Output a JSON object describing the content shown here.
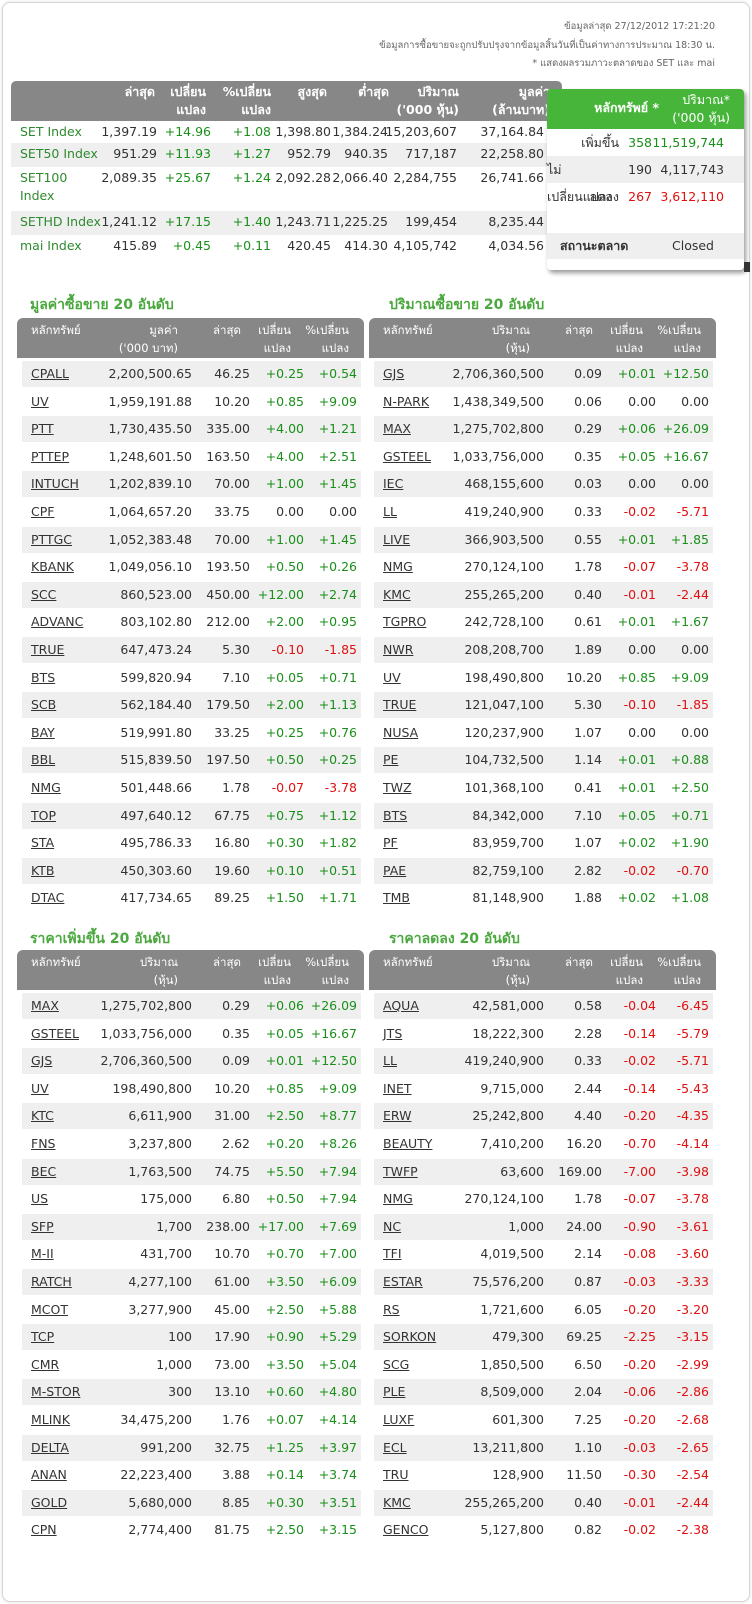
{
  "header": {
    "last_update": "ข้อมูลล่าสุด 27/12/2012 17:21:20",
    "note1": "ข้อมูลการซื้อขายจะถูกปรับปรุงจากข้อมูลสิ้นวันที่เป็นค่าทางการประมาณ 18:30 น.",
    "note2": "* แสดงผลรวมภาวะตลาดของ SET และ mai"
  },
  "index_table": {
    "headers": [
      "ล่าสุด",
      "เปลี่ยน\nแปลง",
      "%เปลี่ยน\nแปลง",
      "สูงสุด",
      "ต่ำสุด",
      "ปริมาณ\n('000 หุ้น)",
      "มูลค่า\n(ล้านบาท)"
    ],
    "rows": [
      {
        "name": "SET Index",
        "last": "1,397.19",
        "chg": "+14.96",
        "pct": "+1.08",
        "high": "1,398.80",
        "low": "1,384.24",
        "vol": "15,203,607",
        "val": "37,164.84"
      },
      {
        "name": "SET50 Index",
        "last": "951.29",
        "chg": "+11.93",
        "pct": "+1.27",
        "high": "952.79",
        "low": "940.35",
        "vol": "717,187",
        "val": "22,258.80"
      },
      {
        "name": "SET100\nIndex",
        "last": "2,089.35",
        "chg": "+25.67",
        "pct": "+1.24",
        "high": "2,092.28",
        "low": "2,066.40",
        "vol": "2,284,755",
        "val": "26,741.66"
      },
      {
        "name": "SETHD Index",
        "last": "1,241.12",
        "chg": "+17.15",
        "pct": "+1.40",
        "high": "1,243.71",
        "low": "1,225.25",
        "vol": "199,454",
        "val": "8,235.44"
      },
      {
        "name": "mai Index",
        "last": "415.89",
        "chg": "+0.45",
        "pct": "+0.11",
        "high": "420.45",
        "low": "414.30",
        "vol": "4,105,742",
        "val": "4,034.56"
      }
    ]
  },
  "advance_decline": {
    "headers": [
      "หลักทรัพย์ *",
      "ปริมาณ*\n('000 หุ้น)"
    ],
    "rows": [
      {
        "label": "เพิ่มขึ้น",
        "count": "358",
        "volume": "11,519,744"
      },
      {
        "label": "ไม่เปลี่ยนแปลง",
        "count": "190",
        "volume": "4,117,743"
      },
      {
        "label": "ลดลง",
        "count": "267",
        "volume": "3,612,110"
      }
    ],
    "status_label": "สถานะตลาด",
    "status_value": "Closed"
  },
  "top_value": {
    "title": "มูลค่าซื้อขาย 20 อันดับ",
    "headers": [
      "หลักทรัพย์",
      "มูลค่า\n('000 บาท)",
      "ล่าสุด",
      "เปลี่ยน\nแปลง",
      "%เปลี่ยน\nแปลง"
    ],
    "rows": [
      [
        "CPALL",
        "2,200,500.65",
        "46.25",
        "+0.25",
        "+0.54"
      ],
      [
        "UV",
        "1,959,191.88",
        "10.20",
        "+0.85",
        "+9.09"
      ],
      [
        "PTT",
        "1,730,435.50",
        "335.00",
        "+4.00",
        "+1.21"
      ],
      [
        "PTTEP",
        "1,248,601.50",
        "163.50",
        "+4.00",
        "+2.51"
      ],
      [
        "INTUCH",
        "1,202,839.10",
        "70.00",
        "+1.00",
        "+1.45"
      ],
      [
        "CPF",
        "1,064,657.20",
        "33.75",
        "0.00",
        "0.00"
      ],
      [
        "PTTGC",
        "1,052,383.48",
        "70.00",
        "+1.00",
        "+1.45"
      ],
      [
        "KBANK",
        "1,049,056.10",
        "193.50",
        "+0.50",
        "+0.26"
      ],
      [
        "SCC",
        "860,523.00",
        "450.00",
        "+12.00",
        "+2.74"
      ],
      [
        "ADVANC",
        "803,102.80",
        "212.00",
        "+2.00",
        "+0.95"
      ],
      [
        "TRUE",
        "647,473.24",
        "5.30",
        "-0.10",
        "-1.85"
      ],
      [
        "BTS",
        "599,820.94",
        "7.10",
        "+0.05",
        "+0.71"
      ],
      [
        "SCB",
        "562,184.40",
        "179.50",
        "+2.00",
        "+1.13"
      ],
      [
        "BAY",
        "519,991.80",
        "33.25",
        "+0.25",
        "+0.76"
      ],
      [
        "BBL",
        "515,839.50",
        "197.50",
        "+0.50",
        "+0.25"
      ],
      [
        "NMG",
        "501,448.66",
        "1.78",
        "-0.07",
        "-3.78"
      ],
      [
        "TOP",
        "497,640.12",
        "67.75",
        "+0.75",
        "+1.12"
      ],
      [
        "STA",
        "495,786.33",
        "16.80",
        "+0.30",
        "+1.82"
      ],
      [
        "KTB",
        "450,303.60",
        "19.60",
        "+0.10",
        "+0.51"
      ],
      [
        "DTAC",
        "417,734.65",
        "89.25",
        "+1.50",
        "+1.71"
      ]
    ]
  },
  "top_volume": {
    "title": "ปริมาณซื้อขาย 20 อันดับ",
    "headers": [
      "หลักทรัพย์",
      "ปริมาณ\n(หุ้น)",
      "ล่าสุด",
      "เปลี่ยน\nแปลง",
      "%เปลี่ยน\nแปลง"
    ],
    "rows": [
      [
        "GJS",
        "2,706,360,500",
        "0.09",
        "+0.01",
        "+12.50"
      ],
      [
        "N-PARK",
        "1,438,349,500",
        "0.06",
        "0.00",
        "0.00"
      ],
      [
        "MAX",
        "1,275,702,800",
        "0.29",
        "+0.06",
        "+26.09"
      ],
      [
        "GSTEEL",
        "1,033,756,000",
        "0.35",
        "+0.05",
        "+16.67"
      ],
      [
        "IEC",
        "468,155,600",
        "0.03",
        "0.00",
        "0.00"
      ],
      [
        "LL",
        "419,240,900",
        "0.33",
        "-0.02",
        "-5.71"
      ],
      [
        "LIVE",
        "366,903,500",
        "0.55",
        "+0.01",
        "+1.85"
      ],
      [
        "NMG",
        "270,124,100",
        "1.78",
        "-0.07",
        "-3.78"
      ],
      [
        "KMC",
        "255,265,200",
        "0.40",
        "-0.01",
        "-2.44"
      ],
      [
        "TGPRO",
        "242,728,100",
        "0.61",
        "+0.01",
        "+1.67"
      ],
      [
        "NWR",
        "208,208,700",
        "1.89",
        "0.00",
        "0.00"
      ],
      [
        "UV",
        "198,490,800",
        "10.20",
        "+0.85",
        "+9.09"
      ],
      [
        "TRUE",
        "121,047,100",
        "5.30",
        "-0.10",
        "-1.85"
      ],
      [
        "NUSA",
        "120,237,900",
        "1.07",
        "0.00",
        "0.00"
      ],
      [
        "PE",
        "104,732,500",
        "1.14",
        "+0.01",
        "+0.88"
      ],
      [
        "TWZ",
        "101,368,100",
        "0.41",
        "+0.01",
        "+2.50"
      ],
      [
        "BTS",
        "84,342,000",
        "7.10",
        "+0.05",
        "+0.71"
      ],
      [
        "PF",
        "83,959,700",
        "1.07",
        "+0.02",
        "+1.90"
      ],
      [
        "PAE",
        "82,759,100",
        "2.82",
        "-0.02",
        "-0.70"
      ],
      [
        "TMB",
        "81,148,900",
        "1.88",
        "+0.02",
        "+1.08"
      ]
    ]
  },
  "top_gainers": {
    "title": "ราคาเพิ่มขึ้น 20 อันดับ",
    "headers": [
      "หลักทรัพย์",
      "ปริมาณ\n(หุ้น)",
      "ล่าสุด",
      "เปลี่ยน\nแปลง",
      "%เปลี่ยน\nแปลง"
    ],
    "rows": [
      [
        "MAX",
        "1,275,702,800",
        "0.29",
        "+0.06",
        "+26.09"
      ],
      [
        "GSTEEL",
        "1,033,756,000",
        "0.35",
        "+0.05",
        "+16.67"
      ],
      [
        "GJS",
        "2,706,360,500",
        "0.09",
        "+0.01",
        "+12.50"
      ],
      [
        "UV",
        "198,490,800",
        "10.20",
        "+0.85",
        "+9.09"
      ],
      [
        "KTC",
        "6,611,900",
        "31.00",
        "+2.50",
        "+8.77"
      ],
      [
        "FNS",
        "3,237,800",
        "2.62",
        "+0.20",
        "+8.26"
      ],
      [
        "BEC",
        "1,763,500",
        "74.75",
        "+5.50",
        "+7.94"
      ],
      [
        "US",
        "175,000",
        "6.80",
        "+0.50",
        "+7.94"
      ],
      [
        "SFP",
        "1,700",
        "238.00",
        "+17.00",
        "+7.69"
      ],
      [
        "M-II",
        "431,700",
        "10.70",
        "+0.70",
        "+7.00"
      ],
      [
        "RATCH",
        "4,277,100",
        "61.00",
        "+3.50",
        "+6.09"
      ],
      [
        "MCOT",
        "3,277,900",
        "45.00",
        "+2.50",
        "+5.88"
      ],
      [
        "TCP",
        "100",
        "17.90",
        "+0.90",
        "+5.29"
      ],
      [
        "CMR",
        "1,000",
        "73.00",
        "+3.50",
        "+5.04"
      ],
      [
        "M-STOR",
        "300",
        "13.10",
        "+0.60",
        "+4.80"
      ],
      [
        "MLINK",
        "34,475,200",
        "1.76",
        "+0.07",
        "+4.14"
      ],
      [
        "DELTA",
        "991,200",
        "32.75",
        "+1.25",
        "+3.97"
      ],
      [
        "ANAN",
        "22,223,400",
        "3.88",
        "+0.14",
        "+3.74"
      ],
      [
        "GOLD",
        "5,680,000",
        "8.85",
        "+0.30",
        "+3.51"
      ],
      [
        "CPN",
        "2,774,400",
        "81.75",
        "+2.50",
        "+3.15"
      ]
    ]
  },
  "top_losers": {
    "title": "ราคาลดลง 20 อันดับ",
    "headers": [
      "หลักทรัพย์",
      "ปริมาณ\n(หุ้น)",
      "ล่าสุด",
      "เปลี่ยน\nแปลง",
      "%เปลี่ยน\nแปลง"
    ],
    "rows": [
      [
        "AQUA",
        "42,581,000",
        "0.58",
        "-0.04",
        "-6.45"
      ],
      [
        "JTS",
        "18,222,300",
        "2.28",
        "-0.14",
        "-5.79"
      ],
      [
        "LL",
        "419,240,900",
        "0.33",
        "-0.02",
        "-5.71"
      ],
      [
        "INET",
        "9,715,000",
        "2.44",
        "-0.14",
        "-5.43"
      ],
      [
        "ERW",
        "25,242,800",
        "4.40",
        "-0.20",
        "-4.35"
      ],
      [
        "BEAUTY",
        "7,410,200",
        "16.20",
        "-0.70",
        "-4.14"
      ],
      [
        "TWFP",
        "63,600",
        "169.00",
        "-7.00",
        "-3.98"
      ],
      [
        "NMG",
        "270,124,100",
        "1.78",
        "-0.07",
        "-3.78"
      ],
      [
        "NC",
        "1,000",
        "24.00",
        "-0.90",
        "-3.61"
      ],
      [
        "TFI",
        "4,019,500",
        "2.14",
        "-0.08",
        "-3.60"
      ],
      [
        "ESTAR",
        "75,576,200",
        "0.87",
        "-0.03",
        "-3.33"
      ],
      [
        "RS",
        "1,721,600",
        "6.05",
        "-0.20",
        "-3.20"
      ],
      [
        "SORKON",
        "479,300",
        "69.25",
        "-2.25",
        "-3.15"
      ],
      [
        "SCG",
        "1,850,500",
        "6.50",
        "-0.20",
        "-2.99"
      ],
      [
        "PLE",
        "8,509,000",
        "2.04",
        "-0.06",
        "-2.86"
      ],
      [
        "LUXF",
        "601,300",
        "7.25",
        "-0.20",
        "-2.68"
      ],
      [
        "ECL",
        "13,211,800",
        "1.10",
        "-0.03",
        "-2.65"
      ],
      [
        "TRU",
        "128,900",
        "11.50",
        "-0.30",
        "-2.54"
      ],
      [
        "KMC",
        "255,265,200",
        "0.40",
        "-0.01",
        "-2.44"
      ],
      [
        "GENCO",
        "5,127,800",
        "0.82",
        "-0.02",
        "-2.38"
      ]
    ]
  },
  "colors": {
    "up": "#1a8f1a",
    "down": "#e01010",
    "header_bg": "#878787",
    "accent": "#4aa83e"
  }
}
